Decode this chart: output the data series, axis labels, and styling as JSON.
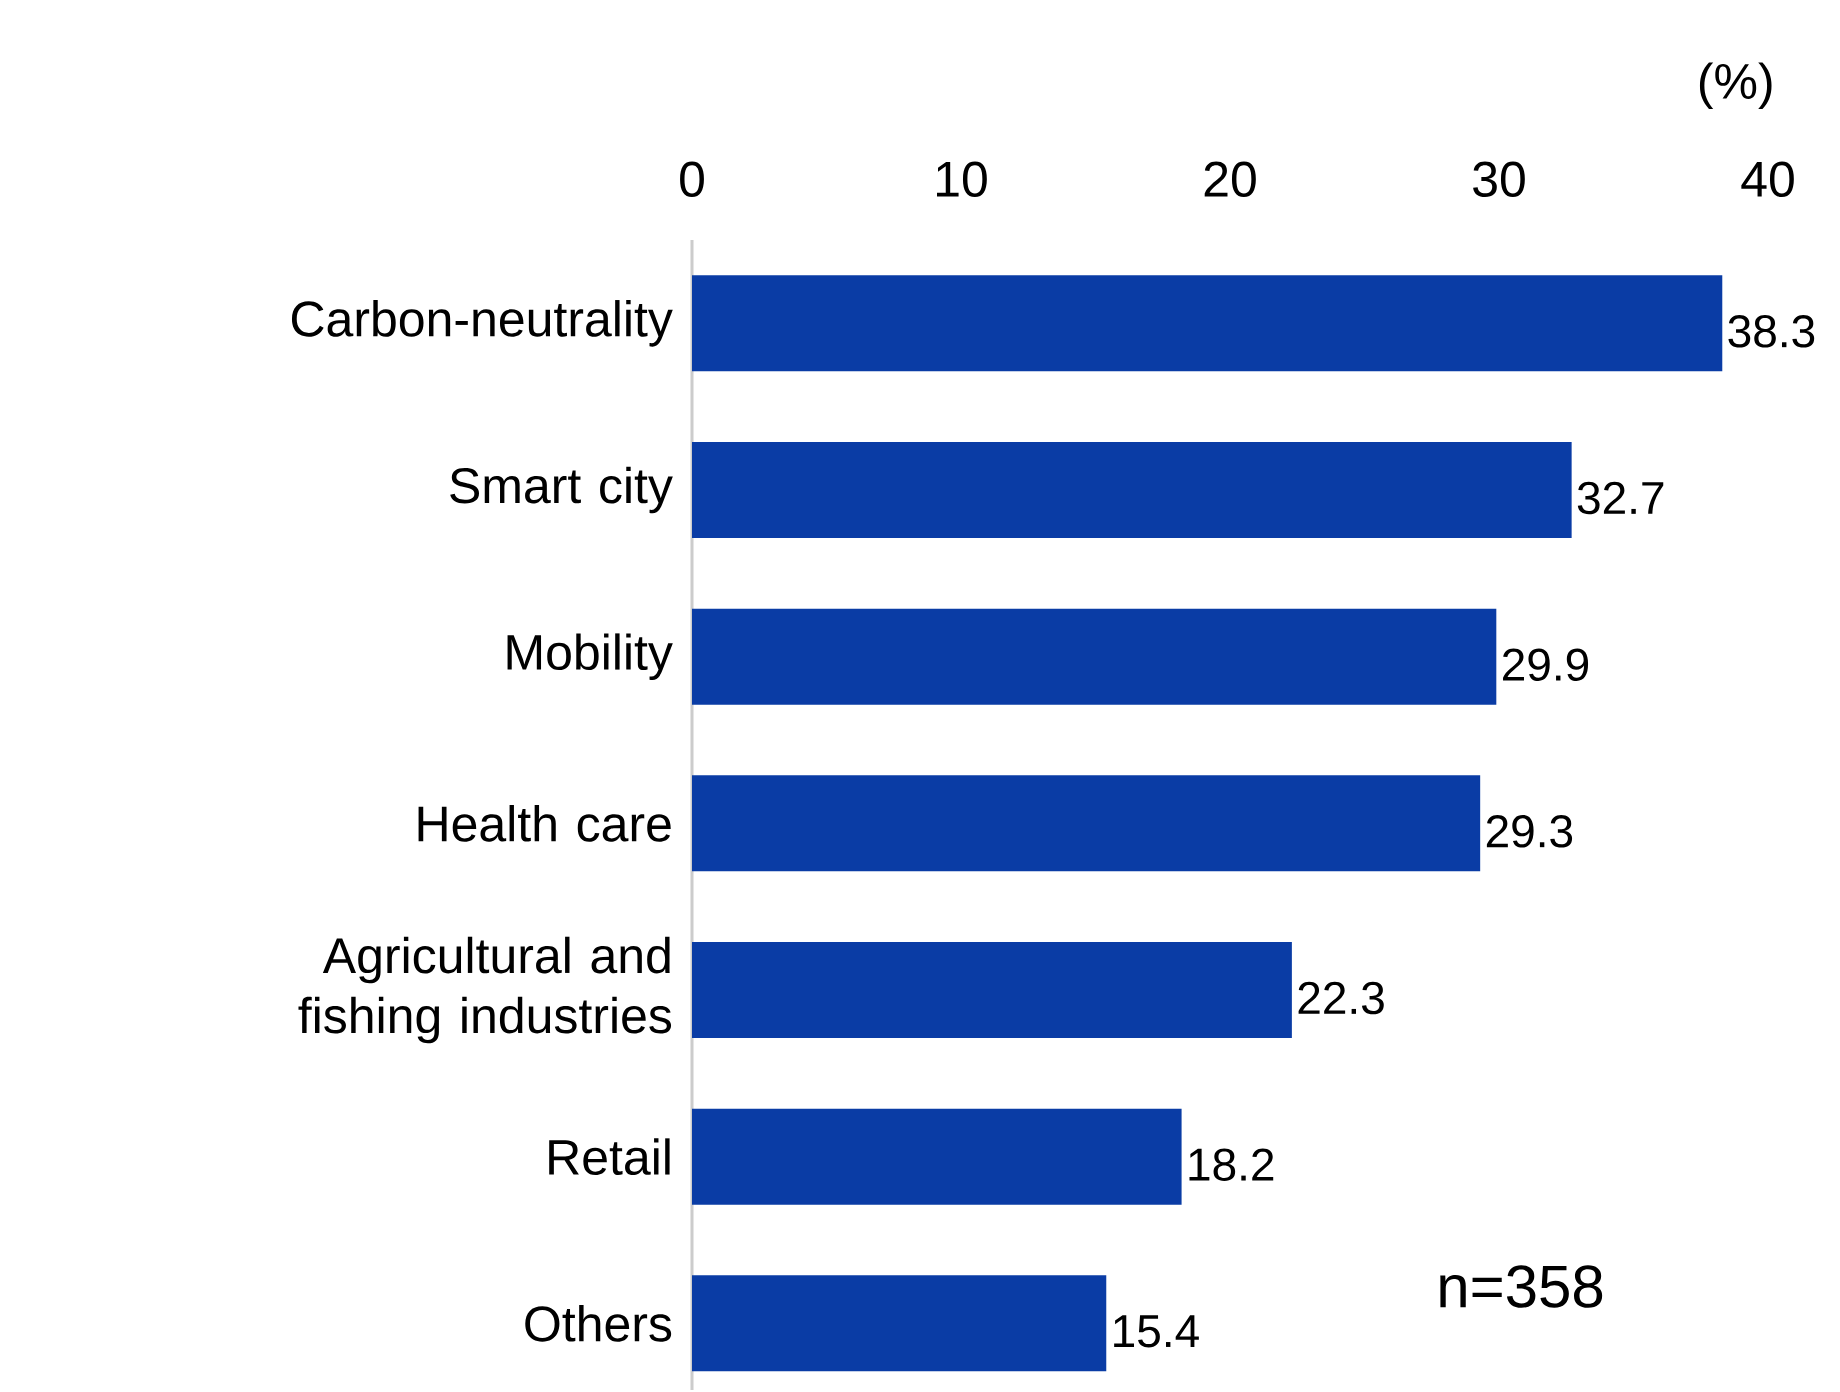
{
  "chart_data": {
    "type": "bar",
    "orientation": "horizontal",
    "xlabel": "(%)",
    "categories": [
      "Carbon-neutrality",
      "Smart city",
      "Mobility",
      "Health care",
      "Agricultural and fishing industries",
      "Retail",
      "Others"
    ],
    "values": [
      38.3,
      32.7,
      29.9,
      29.3,
      22.3,
      18.2,
      15.4
    ],
    "color": "#0a3ca5",
    "xlim": [
      0,
      40
    ],
    "xticks": [
      0,
      10,
      20,
      30,
      40
    ],
    "data_labels": true,
    "annotations": [
      "n=358"
    ]
  }
}
